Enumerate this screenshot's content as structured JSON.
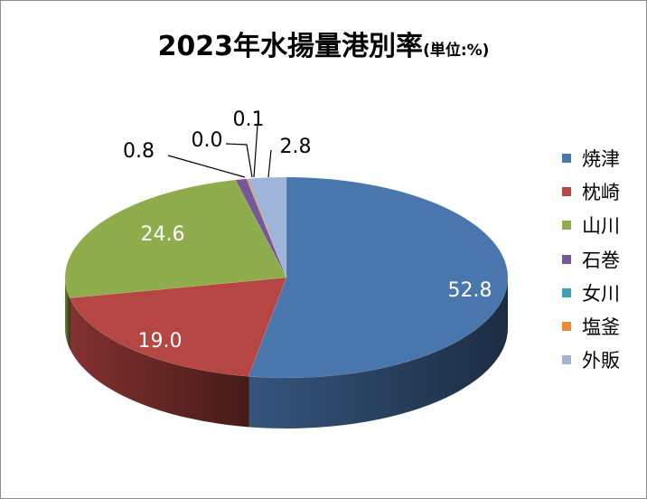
{
  "chart_data": {
    "type": "pie",
    "title": "2023年水揚量港別率",
    "title_suffix": "(単位:%)",
    "categories": [
      "焼津",
      "枕崎",
      "山川",
      "石巻",
      "女川",
      "塩釜",
      "外販"
    ],
    "values": [
      52.8,
      19.0,
      24.6,
      0.8,
      0.0,
      0.1,
      2.8
    ],
    "labels": [
      "52.8",
      "19.0",
      "24.6",
      "0.8",
      "0.0",
      "0.1",
      "2.8"
    ],
    "colors": [
      "#4a76ae",
      "#b64643",
      "#8fad4c",
      "#74589a",
      "#3d9fb9",
      "#e98b3a",
      "#9eb5d9"
    ],
    "legend_position": "right",
    "style": "3d-pie"
  }
}
